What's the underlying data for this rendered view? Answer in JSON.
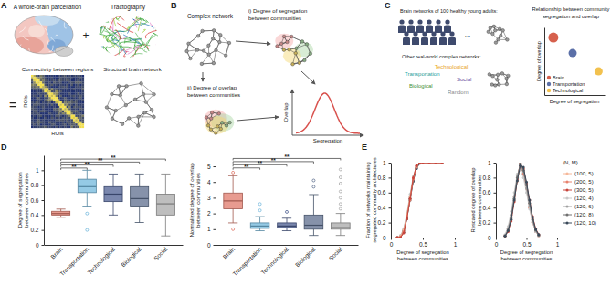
{
  "diagrams": {
    "panel_labels": [
      "A",
      "B",
      "C",
      "D",
      "E"
    ],
    "panel_a": {
      "parcellation": "A whole-brain parcellation",
      "plus": "+",
      "tractography": "Tractography",
      "equals": "=",
      "matrix_title": "Connectivity between regions",
      "roi_y": "ROIs",
      "roi_x": "ROIs",
      "network_title": "Structural brain network"
    },
    "panel_b": {
      "complex_network": "Complex network",
      "segregation": [
        "i) Degree of segregation",
        "between communities"
      ],
      "overlap": [
        "ii) Degree of overlap",
        "between communities"
      ],
      "plot_ylabel": "Overlap",
      "plot_xlabel": "Segregation"
    },
    "panel_c": {
      "brain_title": "Brain networks of 100 healthy young adults:",
      "ellipsis": "...",
      "other_title": "Other real-world complex networks:",
      "network_types": [
        {
          "name": "Technological",
          "color": "#e8a51f"
        },
        {
          "name": "Transportation",
          "color": "#2b9c96"
        },
        {
          "name": "Social",
          "color": "#6b4fa0"
        },
        {
          "name": "Biological",
          "color": "#3f8f3a"
        },
        {
          "name": "Random",
          "color": "#8a8a8a"
        }
      ]
    }
  },
  "chart_data": [
    {
      "type": "scatter",
      "title": [
        "Relationship between community",
        "segregation and overlap"
      ],
      "xlabel": "Degree of segregation",
      "ylabel": "Degree of overlap",
      "xlim": [
        0,
        1
      ],
      "ylim": [
        0,
        1
      ],
      "tick_labels": false,
      "legend": "lower left",
      "marker": "circle",
      "series": [
        {
          "name": "Brain",
          "color": "#d6604d",
          "x": [
            0.15
          ],
          "values": [
            0.85
          ]
        },
        {
          "name": "Transportation",
          "color": "#5b70a8",
          "x": [
            0.47
          ],
          "values": [
            0.62
          ]
        },
        {
          "name": "Technological",
          "color": "#f2c14e",
          "x": [
            0.9
          ],
          "values": [
            0.35
          ]
        }
      ]
    },
    {
      "type": "box",
      "ylabel": [
        "Degree of segregation",
        "between communities"
      ],
      "categories": [
        "Brain",
        "Transportation",
        "Technological",
        "Biological",
        "Social"
      ],
      "colors": [
        "#e0796b",
        "#72b8dc",
        "#4d5f92",
        "#5d6e8e",
        "#a8a8a8"
      ],
      "ylim": [
        0,
        1.2
      ],
      "yticks": [
        0,
        0.2,
        0.4,
        0.6,
        0.8,
        1
      ],
      "boxes": [
        {
          "min": 0.37,
          "q1": 0.4,
          "median": 0.42,
          "q3": 0.45,
          "max": 0.48,
          "outliers": []
        },
        {
          "min": 0.52,
          "q1": 0.7,
          "median": 0.78,
          "q3": 0.88,
          "max": 1.0,
          "outliers": [
            0.42,
            0.2
          ]
        },
        {
          "min": 0.4,
          "q1": 0.58,
          "median": 0.68,
          "q3": 0.78,
          "max": 0.95,
          "outliers": []
        },
        {
          "min": 0.3,
          "q1": 0.52,
          "median": 0.62,
          "q3": 0.78,
          "max": 0.95,
          "outliers": []
        },
        {
          "min": 0.12,
          "q1": 0.4,
          "median": 0.55,
          "q3": 0.68,
          "max": 0.95,
          "outliers": []
        }
      ],
      "significance": [
        {
          "from": "Brain",
          "to": "Transportation",
          "y": 1.03,
          "label": "**"
        },
        {
          "from": "Brain",
          "to": "Technological",
          "y": 1.07,
          "label": "**"
        },
        {
          "from": "Brain",
          "to": "Biological",
          "y": 1.11,
          "label": "**"
        },
        {
          "from": "Brain",
          "to": "Social",
          "y": 1.15,
          "label": "**"
        }
      ]
    },
    {
      "type": "box",
      "ylabel": [
        "Normalized degree of overlap",
        "between communities"
      ],
      "categories": [
        "Brain",
        "Transportation",
        "Technological",
        "Biological",
        "Social"
      ],
      "colors": [
        "#e0796b",
        "#72b8dc",
        "#4d5f92",
        "#5d6e8e",
        "#a8a8a8"
      ],
      "ylim": [
        0,
        5.7
      ],
      "yticks": [
        0,
        1,
        2,
        3,
        4,
        5
      ],
      "boxes": [
        {
          "min": 1.4,
          "q1": 2.3,
          "median": 2.8,
          "q3": 3.3,
          "max": 4.4,
          "outliers": [
            4.6,
            1.0
          ]
        },
        {
          "min": 0.9,
          "q1": 1.05,
          "median": 1.2,
          "q3": 1.4,
          "max": 1.8,
          "outliers": [
            2.2,
            2.6
          ]
        },
        {
          "min": 0.9,
          "q1": 1.1,
          "median": 1.2,
          "q3": 1.4,
          "max": 1.7,
          "outliers": [
            2.1
          ]
        },
        {
          "min": 0.6,
          "q1": 1.0,
          "median": 1.25,
          "q3": 1.9,
          "max": 3.2,
          "outliers": [
            3.7,
            4.1
          ]
        },
        {
          "min": 0.6,
          "q1": 1.0,
          "median": 1.1,
          "q3": 1.4,
          "max": 2.0,
          "outliers": [
            2.3,
            2.6,
            3.0,
            3.4,
            3.9,
            4.3,
            4.8
          ]
        }
      ],
      "significance": [
        {
          "from": "Brain",
          "to": "Transportation",
          "y": 4.9,
          "label": "**"
        },
        {
          "from": "Brain",
          "to": "Technological",
          "y": 5.1,
          "label": "**"
        },
        {
          "from": "Brain",
          "to": "Biological",
          "y": 5.3,
          "label": "**"
        },
        {
          "from": "Brain",
          "to": "Social",
          "y": 5.5,
          "label": "**"
        }
      ]
    },
    {
      "type": "line",
      "xlabel": [
        "Degree of segregation",
        "between communities"
      ],
      "ylabel": [
        "Fraction of networks maintaining",
        "segregated community architectures"
      ],
      "xlim": [
        0,
        1
      ],
      "xticks": [
        0,
        0.5,
        1
      ],
      "ylim": [
        0,
        1
      ],
      "yticks": [
        0,
        0.2,
        0.4,
        0.6,
        0.8,
        1
      ],
      "marker": "circle",
      "x": [
        0.1,
        0.15,
        0.2,
        0.25,
        0.3,
        0.35,
        0.4,
        0.45,
        0.5,
        0.6,
        0.7,
        0.8
      ],
      "series": [
        {
          "color": "#c9c9c9",
          "values": [
            0,
            0.03,
            0.12,
            0.32,
            0.58,
            0.82,
            0.95,
            1,
            1,
            1,
            1,
            1
          ]
        },
        {
          "color": "#a0a0a0",
          "values": [
            0,
            0.02,
            0.1,
            0.3,
            0.55,
            0.79,
            0.94,
            1,
            1,
            1,
            1,
            1
          ]
        },
        {
          "color": "#707070",
          "values": [
            0,
            0.01,
            0.09,
            0.27,
            0.52,
            0.77,
            0.93,
            0.99,
            1,
            1,
            1,
            1
          ]
        },
        {
          "color": "#3b4a5a",
          "values": [
            0,
            0.01,
            0.07,
            0.25,
            0.5,
            0.75,
            0.92,
            0.99,
            1,
            1,
            1,
            1
          ]
        },
        {
          "color": "#f6b89a",
          "values": [
            0,
            0.02,
            0.1,
            0.3,
            0.55,
            0.8,
            0.95,
            1,
            1,
            1,
            1,
            1
          ]
        },
        {
          "color": "#e8826e",
          "values": [
            0,
            0.01,
            0.08,
            0.28,
            0.5,
            0.78,
            0.94,
            1,
            1,
            1,
            1,
            1
          ]
        },
        {
          "color": "#c8453c",
          "values": [
            0,
            0,
            0.06,
            0.25,
            0.52,
            0.8,
            0.96,
            1,
            1,
            1,
            1,
            1
          ]
        }
      ]
    },
    {
      "type": "line",
      "xlabel": [
        "Degree of segregation",
        "between communities"
      ],
      "ylabel": [
        "Rescaled degree of overlap",
        "between communities"
      ],
      "xlim": [
        0,
        1
      ],
      "xticks": [
        0,
        0.5,
        1
      ],
      "ylim": [
        0,
        1
      ],
      "yticks": [
        0,
        0.2,
        0.4,
        0.6,
        0.8,
        1
      ],
      "marker": "circle",
      "legend": "right",
      "legend_title": "(N, M)",
      "x": [
        0.15,
        0.2,
        0.25,
        0.3,
        0.35,
        0.4,
        0.45,
        0.5,
        0.55,
        0.6,
        0.65,
        0.7
      ],
      "series": [
        {
          "name": "(100, 5)",
          "color": "#f6b89a",
          "values": [
            0.02,
            0.1,
            0.25,
            0.5,
            0.75,
            0.95,
            0.9,
            0.7,
            0.45,
            0.25,
            0.1,
            0.03
          ]
        },
        {
          "name": "(200, 5)",
          "color": "#e8826e",
          "values": [
            0.03,
            0.12,
            0.3,
            0.55,
            0.8,
            1.0,
            0.85,
            0.65,
            0.4,
            0.2,
            0.08,
            0.02
          ]
        },
        {
          "name": "(300, 5)",
          "color": "#c8453c",
          "values": [
            0.02,
            0.08,
            0.22,
            0.48,
            0.78,
            0.98,
            0.92,
            0.72,
            0.5,
            0.28,
            0.12,
            0.04
          ]
        },
        {
          "name": "(120, 4)",
          "color": "#c9c9c9",
          "values": [
            0.04,
            0.15,
            0.35,
            0.6,
            0.85,
            0.9,
            0.8,
            0.6,
            0.38,
            0.2,
            0.08,
            0.02
          ]
        },
        {
          "name": "(120, 6)",
          "color": "#a0a0a0",
          "values": [
            0.03,
            0.12,
            0.3,
            0.55,
            0.82,
            0.97,
            0.88,
            0.66,
            0.42,
            0.22,
            0.09,
            0.03
          ]
        },
        {
          "name": "(120, 8)",
          "color": "#707070",
          "values": [
            0.02,
            0.1,
            0.26,
            0.52,
            0.8,
            1.0,
            0.9,
            0.7,
            0.46,
            0.24,
            0.1,
            0.03
          ]
        },
        {
          "name": "(120, 10)",
          "color": "#3b4a5a",
          "values": [
            0.02,
            0.09,
            0.24,
            0.5,
            0.76,
            0.96,
            0.94,
            0.74,
            0.5,
            0.27,
            0.11,
            0.04
          ]
        }
      ]
    }
  ]
}
